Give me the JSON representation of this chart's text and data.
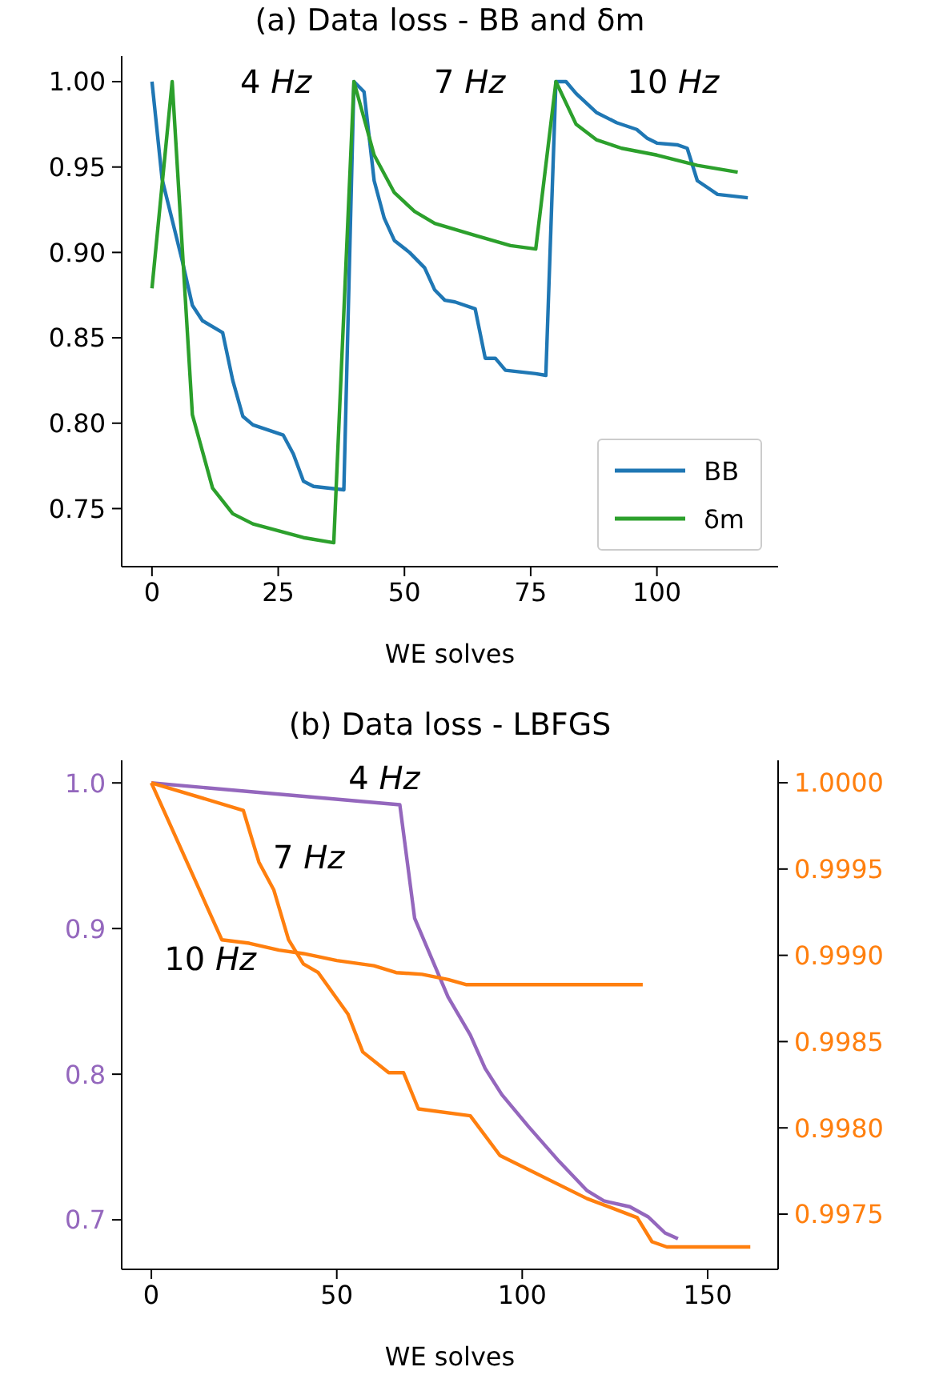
{
  "chart_data": [
    {
      "type": "line",
      "title": "(a) Data loss - BB and δm",
      "xlabel": "WE solves",
      "xlim": [
        -6,
        124
      ],
      "xticks": [
        0,
        25,
        50,
        75,
        100
      ],
      "ylim": [
        0.716,
        1.015
      ],
      "yticks": [
        {
          "value": 0.75,
          "label": "0.75"
        },
        {
          "value": 0.8,
          "label": "0.80"
        },
        {
          "value": 0.85,
          "label": "0.85"
        },
        {
          "value": 0.9,
          "label": "0.90"
        },
        {
          "value": 0.95,
          "label": "0.95"
        },
        {
          "value": 1.0,
          "label": "1.00"
        }
      ],
      "legend": "bottom right",
      "annotations": [
        "4 Hz",
        "7 Hz",
        "10 Hz"
      ],
      "series": [
        {
          "name": "BB",
          "color": "#1f77b4",
          "x": [
            0,
            2,
            4,
            6,
            8,
            10,
            14,
            16,
            18,
            20,
            26,
            28,
            30,
            32,
            38,
            40,
            42,
            44,
            46,
            48,
            51,
            54,
            56,
            58,
            60,
            64,
            66,
            68,
            70,
            76,
            78,
            80,
            82,
            84,
            88,
            92,
            96,
            98,
            100,
            104,
            106,
            108,
            110,
            112,
            118
          ],
          "values": [
            1.0,
            0.943,
            0.919,
            0.895,
            0.869,
            0.86,
            0.853,
            0.825,
            0.804,
            0.799,
            0.793,
            0.782,
            0.766,
            0.763,
            0.761,
            1.0,
            0.994,
            0.942,
            0.92,
            0.907,
            0.9,
            0.891,
            0.878,
            0.872,
            0.871,
            0.867,
            0.838,
            0.838,
            0.831,
            0.829,
            0.828,
            1.0,
            1.0,
            0.993,
            0.982,
            0.976,
            0.972,
            0.967,
            0.964,
            0.963,
            0.961,
            0.942,
            0.938,
            0.934,
            0.932
          ]
        },
        {
          "name": "δm",
          "color": "#2ca02c",
          "x": [
            0,
            4,
            8,
            12,
            16,
            20,
            25,
            30,
            36,
            40,
            44,
            48,
            52,
            56,
            64,
            71,
            76,
            80,
            84,
            88,
            93,
            100,
            108,
            116
          ],
          "values": [
            0.879,
            1.0,
            0.805,
            0.762,
            0.747,
            0.741,
            0.737,
            0.733,
            0.73,
            1.0,
            0.957,
            0.935,
            0.924,
            0.917,
            0.91,
            0.904,
            0.902,
            1.0,
            0.975,
            0.966,
            0.961,
            0.957,
            0.951,
            0.947
          ]
        }
      ]
    },
    {
      "type": "line",
      "title": "(b) Data loss - LBFGS",
      "xlabel": "WE solves",
      "xlim": [
        -8,
        169
      ],
      "xticks": [
        0,
        50,
        100,
        150
      ],
      "ylim": [
        0.666,
        1.0155
      ],
      "yticks": [
        {
          "value": 0.7,
          "label": "0.7"
        },
        {
          "value": 0.8,
          "label": "0.8"
        },
        {
          "value": 0.9,
          "label": "0.9"
        },
        {
          "value": 1.0,
          "label": "1.0"
        }
      ],
      "y2lim": [
        0.99718,
        1.00013
      ],
      "y2ticks": [
        {
          "value": 0.9975,
          "label": "0.9975"
        },
        {
          "value": 0.998,
          "label": "0.9980"
        },
        {
          "value": 0.9985,
          "label": "0.9985"
        },
        {
          "value": 0.999,
          "label": "0.9990"
        },
        {
          "value": 0.9995,
          "label": "0.9995"
        },
        {
          "value": 1.0,
          "label": "1.0000"
        }
      ],
      "annotations": [
        "4 Hz",
        "7 Hz",
        "10 Hz"
      ],
      "series": [
        {
          "color": "#9467bd",
          "x": [
            0,
            67,
            71,
            80,
            86,
            90,
            94.5,
            101.7,
            110,
            117.5,
            122,
            129,
            134,
            138.5,
            142
          ],
          "values": [
            1.0,
            0.985,
            0.907,
            0.853,
            0.827,
            0.804,
            0.786,
            0.764,
            0.74,
            0.72,
            0.713,
            0.709,
            0.702,
            0.691,
            0.687
          ]
        },
        {
          "color": "#ff7f0e",
          "axis": "y2",
          "x": [
            0,
            24.8,
            29,
            33,
            37,
            41,
            45,
            53,
            57,
            64,
            68,
            72,
            86,
            94,
            117.5,
            131,
            135,
            139,
            161.5
          ],
          "values": [
            1.0,
            0.99984,
            0.99954,
            0.99938,
            0.99909,
            0.99895,
            0.9989,
            0.99866,
            0.99844,
            0.99832,
            0.99832,
            0.99811,
            0.99807,
            0.99784,
            0.99759,
            0.99748,
            0.99734,
            0.99731,
            0.99731
          ]
        },
        {
          "color": "#ff7f0e",
          "axis": "y2",
          "x": [
            0,
            19,
            26.4,
            34.4,
            41,
            50,
            60,
            66,
            73,
            80,
            85,
            132.5
          ],
          "values": [
            1.0,
            0.99909,
            0.99907,
            0.99903,
            0.99901,
            0.99897,
            0.99894,
            0.9989,
            0.99889,
            0.99886,
            0.99883,
            0.99883
          ]
        }
      ]
    }
  ]
}
